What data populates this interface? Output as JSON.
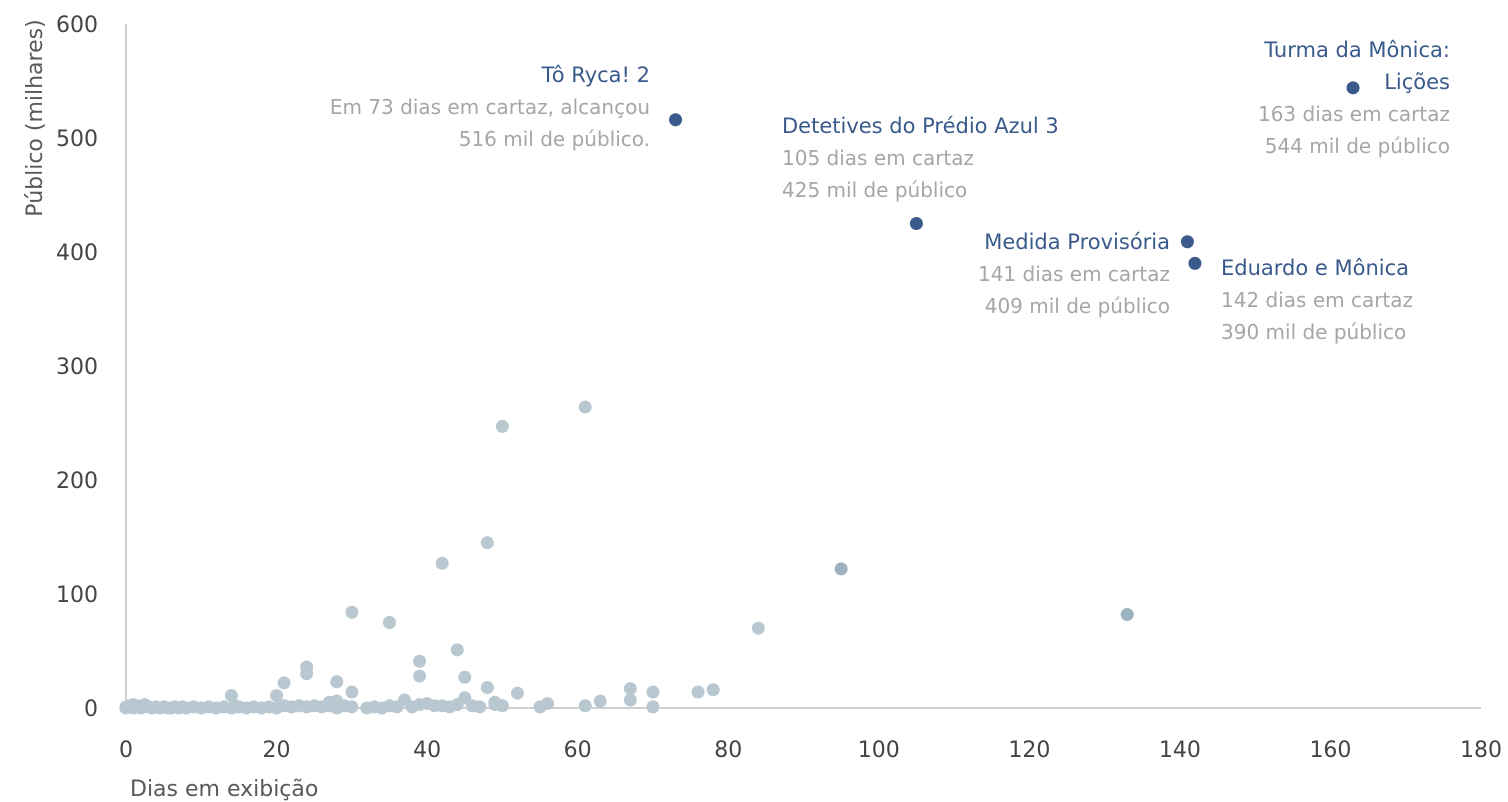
{
  "colors": {
    "background_points": "#b9c8d0",
    "background_points_highlight": "#9cb2be",
    "highlight_points": "#3a5a8c",
    "annotation_title": "#3a5a8c",
    "annotation_text": "#a6a6a6",
    "axis": "#bfbfbf"
  },
  "chart_data": {
    "type": "scatter",
    "title": "",
    "xlabel": "Dias em exibição",
    "ylabel": "Público (milhares)",
    "xlim": [
      0,
      180
    ],
    "ylim": [
      0,
      600
    ],
    "x_ticks": [
      "0",
      "20",
      "40",
      "60",
      "80",
      "100",
      "120",
      "140",
      "160",
      "180"
    ],
    "y_ticks": [
      "0",
      "100",
      "200",
      "300",
      "400",
      "500",
      "600"
    ],
    "grid": false,
    "legend": "none",
    "series": [
      {
        "points": [
          [
            0,
            0
          ],
          [
            0,
            1
          ],
          [
            0.5,
            2
          ],
          [
            1,
            0
          ],
          [
            1,
            3
          ],
          [
            1.5,
            1
          ],
          [
            2,
            0
          ],
          [
            2,
            2
          ],
          [
            2.5,
            3
          ],
          [
            3,
            1
          ],
          [
            3.5,
            0
          ],
          [
            4,
            1
          ],
          [
            4.5,
            0
          ],
          [
            5,
            1
          ],
          [
            5.5,
            0
          ],
          [
            6,
            0
          ],
          [
            6.5,
            1
          ],
          [
            7,
            0
          ],
          [
            7.5,
            1
          ],
          [
            8,
            0
          ],
          [
            9,
            1
          ],
          [
            10,
            0
          ],
          [
            11,
            1
          ],
          [
            12,
            0
          ],
          [
            13,
            1
          ],
          [
            14,
            0
          ],
          [
            14,
            11
          ],
          [
            14.5,
            2
          ],
          [
            15,
            1
          ],
          [
            16,
            0
          ],
          [
            17,
            1
          ],
          [
            18,
            0
          ],
          [
            19,
            1
          ],
          [
            20,
            0
          ],
          [
            20,
            11
          ],
          [
            21,
            2
          ],
          [
            21,
            22
          ],
          [
            22,
            1
          ],
          [
            23,
            2
          ],
          [
            24,
            1
          ],
          [
            24,
            30
          ],
          [
            24,
            36
          ],
          [
            25,
            2
          ],
          [
            26,
            1
          ],
          [
            27,
            2
          ],
          [
            27,
            5
          ],
          [
            28,
            0
          ],
          [
            28,
            6
          ],
          [
            28,
            23
          ],
          [
            29,
            2
          ],
          [
            30,
            1
          ],
          [
            30,
            14
          ],
          [
            30,
            84
          ],
          [
            32,
            0
          ],
          [
            33,
            1
          ],
          [
            34,
            0
          ],
          [
            35,
            2
          ],
          [
            35,
            75
          ],
          [
            36,
            1
          ],
          [
            37,
            7
          ],
          [
            38,
            1
          ],
          [
            39,
            3
          ],
          [
            39,
            28
          ],
          [
            39,
            41
          ],
          [
            40,
            4
          ],
          [
            41,
            2
          ],
          [
            42,
            2
          ],
          [
            42,
            127
          ],
          [
            43,
            1
          ],
          [
            44,
            3
          ],
          [
            44,
            51
          ],
          [
            45,
            9
          ],
          [
            45,
            27
          ],
          [
            46,
            2
          ],
          [
            47,
            1
          ],
          [
            48,
            18
          ],
          [
            48,
            145
          ],
          [
            49,
            3
          ],
          [
            49,
            5
          ],
          [
            50,
            2
          ],
          [
            50,
            247
          ],
          [
            52,
            13
          ],
          [
            55,
            1
          ],
          [
            56,
            4
          ],
          [
            61,
            2
          ],
          [
            61,
            264
          ],
          [
            63,
            6
          ],
          [
            67,
            7
          ],
          [
            67,
            17
          ],
          [
            70,
            1
          ],
          [
            70,
            14
          ],
          [
            76,
            14
          ],
          [
            78,
            16
          ],
          [
            84,
            70
          ],
          [
            95,
            122
          ],
          [
            133,
            82
          ]
        ]
      },
      {
        "points": [
          {
            "x": 73,
            "y": 516,
            "label_title": "Tô Ryca! 2",
            "label_lines": [
              "Em 73 dias em cartaz, alcançou",
              "516 mil de público."
            ]
          },
          {
            "x": 105,
            "y": 425,
            "label_title": "Detetives do Prédio Azul 3",
            "label_lines": [
              "105 dias em cartaz",
              "425 mil de público"
            ]
          },
          {
            "x": 141,
            "y": 409,
            "label_title": "Medida Provisória",
            "label_lines": [
              "141 dias em cartaz",
              "409 mil de público"
            ]
          },
          {
            "x": 142,
            "y": 390,
            "label_title": "Eduardo e Mônica",
            "label_lines": [
              "142 dias em cartaz",
              "390 mil de público"
            ]
          },
          {
            "x": 163,
            "y": 544,
            "label_title_lines": [
              "Turma da Mônica:",
              "Lições"
            ],
            "label_lines": [
              "163 dias em cartaz",
              "544 mil de público"
            ]
          }
        ]
      }
    ]
  }
}
